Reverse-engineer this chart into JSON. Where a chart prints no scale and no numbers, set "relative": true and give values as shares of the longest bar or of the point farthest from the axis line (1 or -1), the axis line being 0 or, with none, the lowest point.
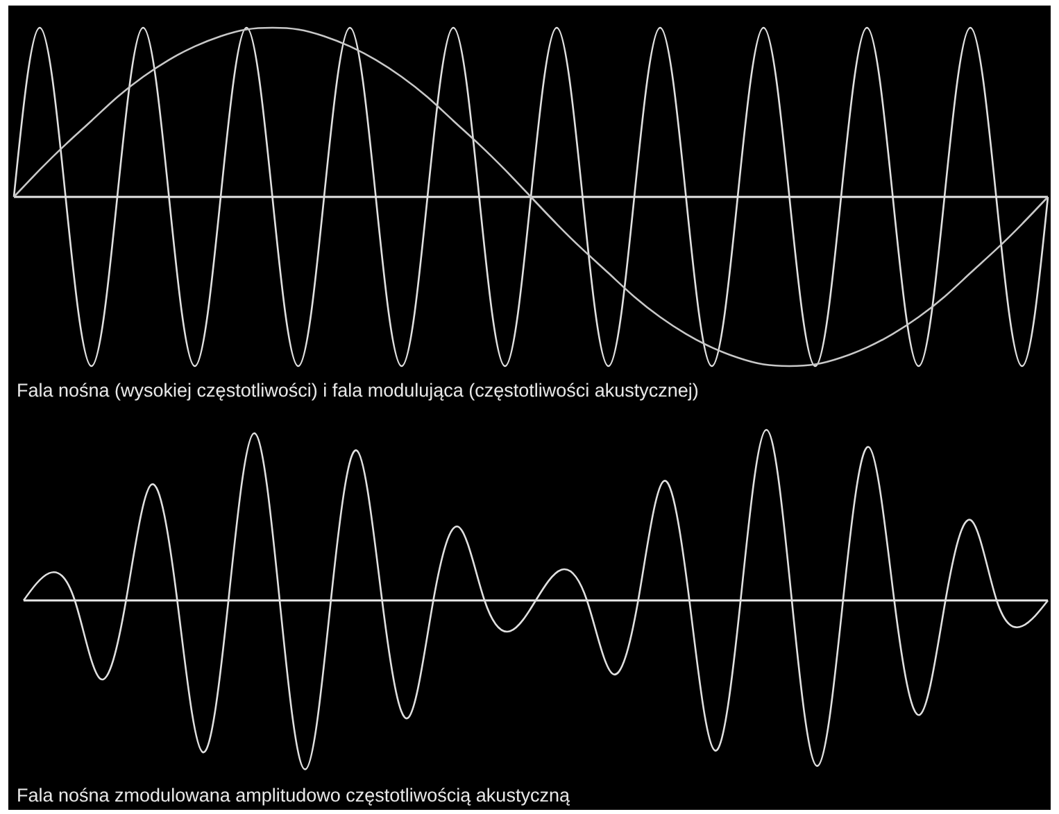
{
  "chart_data": [
    {
      "type": "line",
      "title": "Fala nośna (wysokiej częstotliwości) i fala modulująca (częstotliwości akustycznej)",
      "relative": true,
      "categories": [
        null,
        null,
        null,
        null,
        null,
        null,
        null,
        null,
        null,
        null,
        null,
        null,
        null,
        null,
        null,
        null,
        null,
        null,
        null,
        null,
        null,
        null,
        null,
        null,
        null,
        null,
        null,
        null,
        null,
        null,
        null,
        null,
        null,
        null,
        null,
        null,
        null,
        null,
        null,
        null,
        null
      ],
      "series": [
        {
          "color": "#e0e0e0",
          "values": [
            0,
            1,
            0,
            -1,
            0,
            1,
            0,
            -1,
            0,
            1,
            0,
            -1,
            0,
            1,
            0,
            -1,
            0,
            1,
            0,
            -1,
            0,
            1,
            0,
            -1,
            0,
            1,
            0,
            -1,
            0,
            1,
            0,
            -1,
            0,
            1,
            0,
            -1,
            0,
            1,
            0,
            -1,
            0
          ]
        },
        {
          "color": "#c8c8c8",
          "values": [
            0,
            0.16,
            0.31,
            0.45,
            0.59,
            0.71,
            0.81,
            0.89,
            0.95,
            0.99,
            1,
            0.99,
            0.95,
            0.89,
            0.81,
            0.71,
            0.59,
            0.45,
            0.31,
            0.16,
            0,
            -0.16,
            -0.31,
            -0.45,
            -0.59,
            -0.71,
            -0.81,
            -0.89,
            -0.95,
            -0.99,
            -1,
            -0.99,
            -0.95,
            -0.89,
            -0.81,
            -0.71,
            -0.59,
            -0.45,
            -0.31,
            -0.16,
            0
          ]
        }
      ]
    },
    {
      "type": "line",
      "title": "Fala nośna zmodulowana amplitudowo częstotliwością akustyczną",
      "relative": true,
      "categories": [
        null,
        null,
        null,
        null,
        null,
        null,
        null,
        null,
        null,
        null,
        null,
        null,
        null,
        null,
        null,
        null,
        null,
        null,
        null,
        null,
        null,
        null,
        null,
        null,
        null,
        null,
        null,
        null,
        null,
        null,
        null,
        null,
        null,
        null,
        null,
        null,
        null,
        null,
        null,
        null,
        null
      ],
      "series": [
        {
          "color": "#e0e0e0",
          "values": [
            0,
            0.16,
            0,
            -0.46,
            0,
            0.68,
            0,
            -0.89,
            0,
            0.98,
            0,
            -0.99,
            0,
            0.88,
            0,
            -0.69,
            0,
            0.43,
            0,
            -0.18,
            0,
            0.18,
            0,
            -0.43,
            0,
            0.7,
            0,
            -0.88,
            0,
            1,
            0,
            -0.97,
            0,
            0.9,
            0,
            -0.67,
            0,
            0.47,
            0,
            -0.15,
            0
          ]
        }
      ]
    }
  ]
}
